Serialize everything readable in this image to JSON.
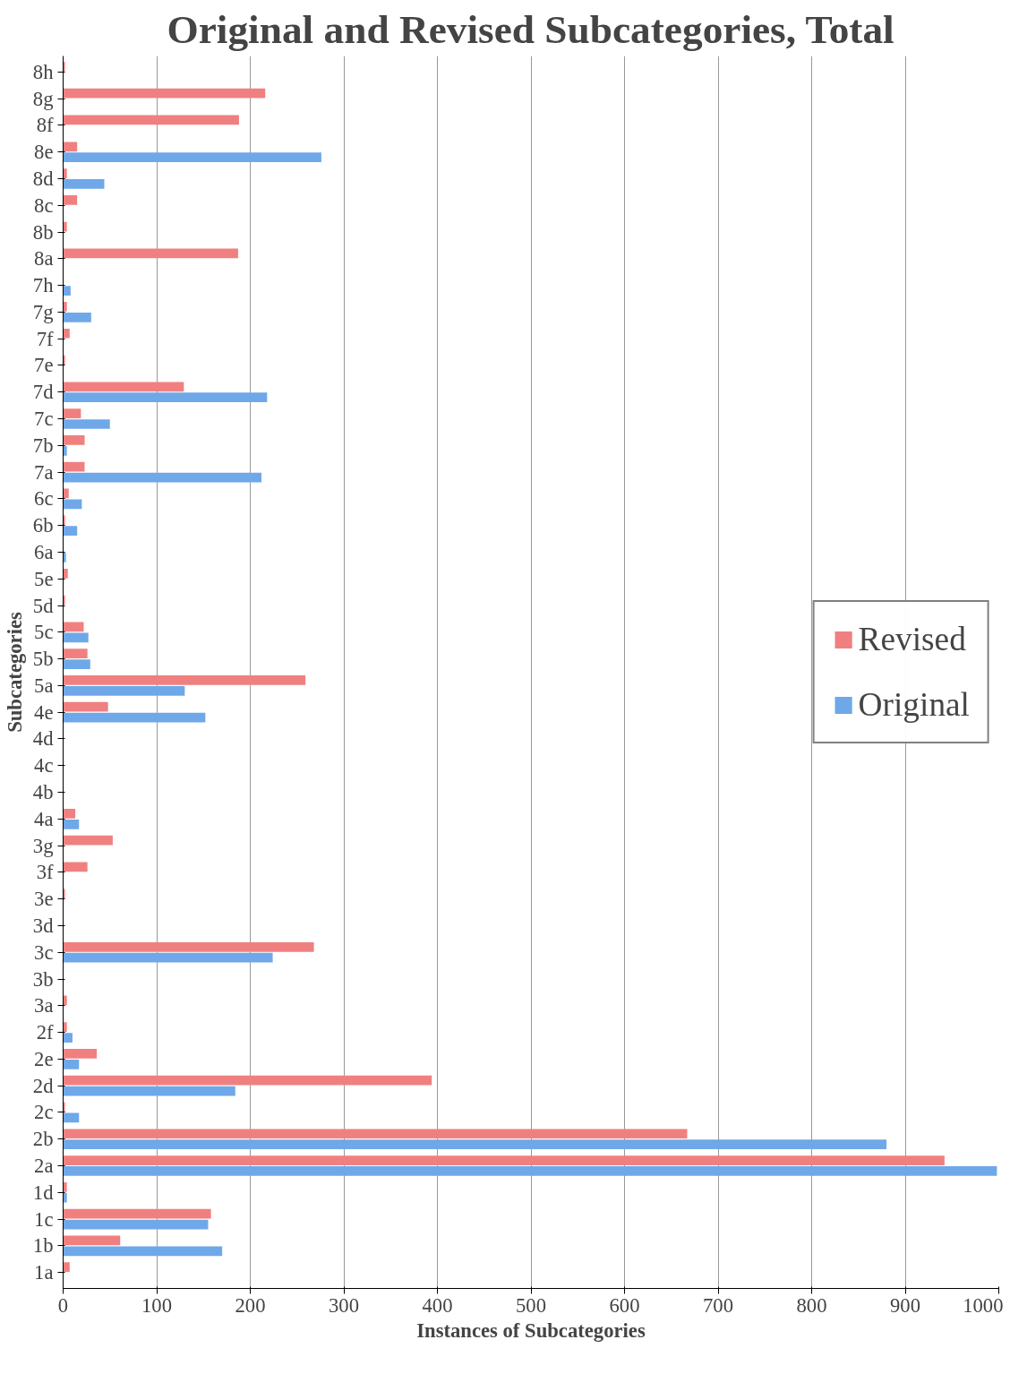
{
  "chart_data": {
    "type": "bar",
    "orientation": "horizontal",
    "title": "Original and Revised Subcategories, Total",
    "xlabel": "Instances of Subcategories",
    "ylabel": "Subcategories",
    "categories": [
      "8h",
      "8g",
      "8f",
      "8e",
      "8d",
      "8c",
      "8b",
      "8a",
      "7h",
      "7g",
      "7f",
      "7e",
      "7d",
      "7c",
      "7b",
      "7a",
      "6c",
      "6b",
      "6a",
      "5e",
      "5d",
      "5c",
      "5b",
      "5a",
      "4e",
      "4d",
      "4c",
      "4b",
      "4a",
      "3g",
      "3f",
      "3e",
      "3d",
      "3c",
      "3b",
      "3a",
      "2f",
      "2e",
      "2d",
      "2c",
      "2b",
      "2a",
      "1d",
      "1c",
      "1b",
      "1a"
    ],
    "series": [
      {
        "name": "Revised",
        "color": "#f08080",
        "values": [
          2,
          216,
          188,
          15,
          4,
          15,
          4,
          187,
          0,
          4,
          7,
          2,
          129,
          19,
          23,
          23,
          6,
          2,
          0,
          5,
          2,
          22,
          26,
          259,
          48,
          0,
          0,
          0,
          13,
          53,
          26,
          2,
          0,
          268,
          0,
          4,
          4,
          36,
          394,
          2,
          667,
          942,
          4,
          158,
          61,
          7
        ]
      },
      {
        "name": "Original",
        "color": "#6fa8e8",
        "values": [
          0,
          0,
          0,
          276,
          44,
          0,
          0,
          0,
          8,
          30,
          0,
          0,
          218,
          50,
          4,
          212,
          20,
          15,
          3,
          0,
          0,
          27,
          29,
          130,
          152,
          0,
          0,
          0,
          17,
          0,
          0,
          0,
          0,
          224,
          0,
          0,
          10,
          17,
          184,
          17,
          880,
          998,
          4,
          155,
          170,
          0
        ]
      }
    ],
    "xlim": [
      0,
      1000
    ],
    "xticks": [
      0,
      100,
      200,
      300,
      400,
      500,
      600,
      700,
      800,
      900,
      1000
    ],
    "grid": "x",
    "legend": "right"
  }
}
